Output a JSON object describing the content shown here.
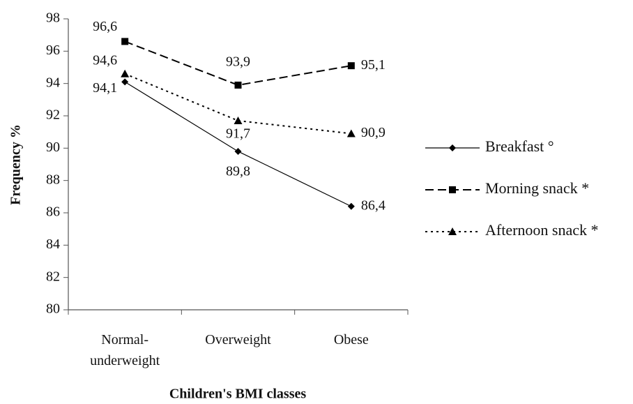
{
  "chart_data": {
    "type": "line",
    "x_label": "Children's BMI classes",
    "y_label": "Frequency %",
    "categories": [
      "Normal-underweight",
      "Overweight",
      "Obese"
    ],
    "series": [
      {
        "name": "Breakfast °",
        "color": "#000000",
        "dash": "solid",
        "marker": "diamond",
        "values": [
          94.1,
          89.8,
          86.4
        ],
        "value_labels": [
          "94,1",
          "89,8",
          "86,4"
        ]
      },
      {
        "name": "Morning snack *",
        "color": "#000000",
        "dash": "dashed",
        "marker": "square",
        "values": [
          96.6,
          93.9,
          95.1
        ],
        "value_labels": [
          "96,6",
          "93,9",
          "95,1"
        ]
      },
      {
        "name": "Afternoon snack *",
        "color": "#000000",
        "dash": "dotted",
        "marker": "triangle",
        "values": [
          94.6,
          91.7,
          90.9
        ],
        "value_labels": [
          "94,6",
          "91,7",
          "90,9"
        ]
      }
    ],
    "ylim": [
      80,
      98
    ],
    "yticks": [
      80,
      82,
      84,
      86,
      88,
      90,
      92,
      94,
      96,
      98
    ],
    "legend": "right"
  }
}
